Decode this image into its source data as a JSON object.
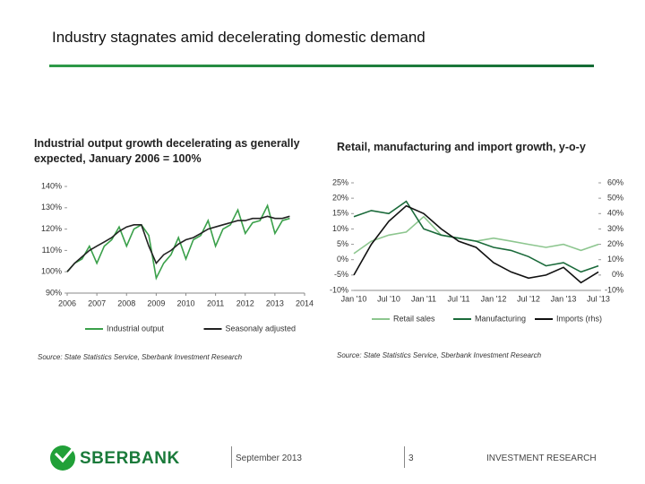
{
  "slide": {
    "title": "Industry stagnates amid decelerating domestic demand",
    "brand": "SBERBANK",
    "date": "September 2013",
    "page": "3",
    "footer": "INVESTMENT RESEARCH"
  },
  "chart_data": [
    {
      "type": "line",
      "title": "Industrial output growth decelerating as generally expected, January 2006 = 100%",
      "source": "Source: State Statistics Service, Sberbank Investment Research",
      "x": [
        2006.0,
        2006.25,
        2006.5,
        2006.75,
        2007.0,
        2007.25,
        2007.5,
        2007.75,
        2008.0,
        2008.25,
        2008.5,
        2008.75,
        2009.0,
        2009.25,
        2009.5,
        2009.75,
        2010.0,
        2010.25,
        2010.5,
        2010.75,
        2011.0,
        2011.25,
        2011.5,
        2011.75,
        2012.0,
        2012.25,
        2012.5,
        2012.75,
        2013.0,
        2013.25,
        2013.5
      ],
      "series": [
        {
          "name": "Industrial output",
          "color": "#3aa04a",
          "values": [
            100,
            104,
            106,
            112,
            104,
            112,
            115,
            121,
            112,
            120,
            122,
            117,
            97,
            104,
            108,
            116,
            106,
            115,
            117,
            124,
            112,
            120,
            122,
            129,
            118,
            123,
            124,
            131,
            118,
            124,
            125
          ]
        },
        {
          "name": "Seasonaly adjusted",
          "color": "#222222",
          "values": [
            100,
            104,
            107,
            110,
            112,
            114,
            116,
            119,
            121,
            122,
            122,
            112,
            104,
            108,
            110,
            113,
            115,
            116,
            118,
            120,
            121,
            122,
            123,
            124,
            124,
            125,
            125,
            126,
            125,
            125,
            126
          ]
        }
      ],
      "xlim": [
        2006,
        2014
      ],
      "xticks": [
        2006,
        2007,
        2008,
        2009,
        2010,
        2011,
        2012,
        2013,
        2014
      ],
      "ylim": [
        90,
        140
      ],
      "yticks": [
        {
          "value": 90,
          "label": "90%"
        },
        {
          "value": 100,
          "label": "100%"
        },
        {
          "value": 110,
          "label": "110%"
        },
        {
          "value": 120,
          "label": "120%"
        },
        {
          "value": 130,
          "label": "130%"
        },
        {
          "value": 140,
          "label": "140%"
        }
      ]
    },
    {
      "type": "line",
      "title": "Retail, manufacturing and import growth, y-o-y",
      "source": "Source: State Statistics Service, Sberbank Investment Research",
      "categories": [
        "Jan '10",
        null,
        "Jul '10",
        null,
        "Jan '11",
        null,
        "Jul '11",
        null,
        "Jan '12",
        null,
        "Jul '12",
        null,
        "Jan '13",
        null,
        "Jul '13"
      ],
      "series": [
        {
          "name": "Retail sales",
          "color": "#8dc68f",
          "values": [
            2,
            6,
            8,
            9,
            14,
            8,
            7,
            6,
            7,
            6,
            5,
            4,
            5,
            3,
            5
          ]
        },
        {
          "name": "Manufacturing",
          "color": "#1a6a3a",
          "values": [
            14,
            16,
            15,
            19,
            10,
            8,
            7,
            6,
            4,
            3,
            1,
            -2,
            -1,
            -4,
            -2
          ]
        },
        {
          "name": "Imports (rhs)",
          "color": "#111111",
          "axis": "y2",
          "values": [
            0,
            20,
            35,
            45,
            40,
            30,
            22,
            18,
            8,
            2,
            -2,
            0,
            5,
            -5,
            2
          ]
        }
      ],
      "ylim": [
        -10,
        25
      ],
      "yticks": [
        {
          "value": -10,
          "label": "-10%"
        },
        {
          "value": -5,
          "label": "-5%"
        },
        {
          "value": 0,
          "label": "0%"
        },
        {
          "value": 5,
          "label": "5%"
        },
        {
          "value": 10,
          "label": "10%"
        },
        {
          "value": 15,
          "label": "15%"
        },
        {
          "value": 20,
          "label": "20%"
        },
        {
          "value": 25,
          "label": "25%"
        }
      ],
      "y2lim": [
        -10,
        60
      ],
      "y2ticks": [
        {
          "value": -10,
          "label": "-10%"
        },
        {
          "value": 0,
          "label": "0%"
        },
        {
          "value": 10,
          "label": "10%"
        },
        {
          "value": 20,
          "label": "20%"
        },
        {
          "value": 30,
          "label": "30%"
        },
        {
          "value": 40,
          "label": "40%"
        },
        {
          "value": 50,
          "label": "50%"
        },
        {
          "value": 60,
          "label": "60%"
        }
      ]
    }
  ]
}
